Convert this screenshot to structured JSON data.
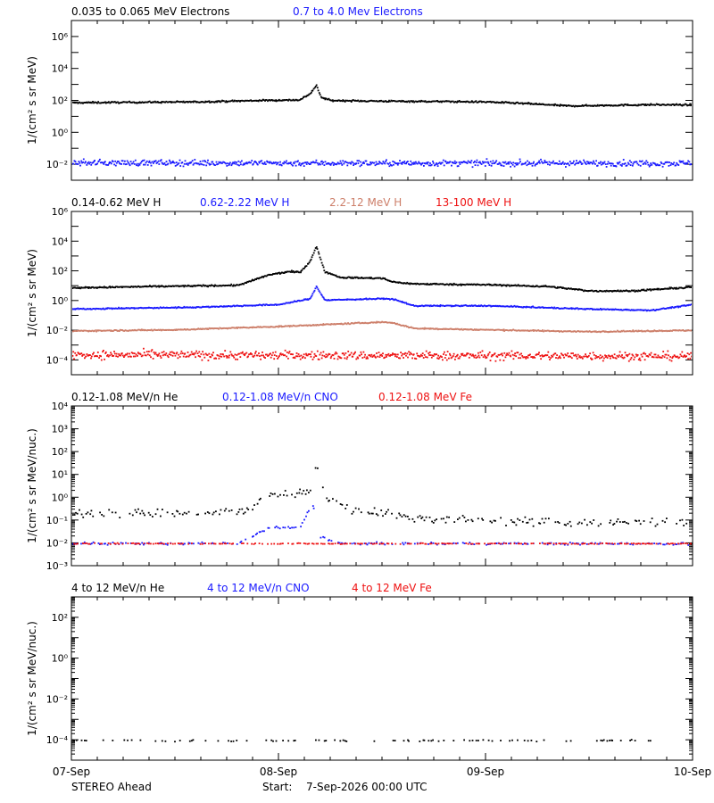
{
  "footer": {
    "spacecraft": "STEREO Ahead",
    "start_label": "Start:",
    "start_value": "7-Sep-2026 00:00 UTC"
  },
  "x_axis": {
    "ticks": [
      "07-Sep",
      "08-Sep",
      "09-Sep",
      "10-Sep"
    ],
    "range_days": [
      0,
      3
    ]
  },
  "colors": {
    "black": "#000000",
    "blue": "#1a1aff",
    "tan": "#cd7f6a",
    "red": "#ee1111"
  },
  "chart_data": [
    {
      "type": "scatter",
      "ylabel": "1/(cm² s sr MeV)",
      "yscale": "log",
      "ylim_exp": [
        -3,
        7
      ],
      "y_ticks": [
        {
          "e": -2,
          "label": "10⁻²"
        },
        {
          "e": 0,
          "label": "10⁰"
        },
        {
          "e": 2,
          "label": "10²"
        },
        {
          "e": 4,
          "label": "10⁴"
        },
        {
          "e": 6,
          "label": "10⁶"
        }
      ],
      "series": [
        {
          "name": "0.035 to 0.065 MeV Electrons",
          "color": "#000000",
          "x": [
            0,
            0.3,
            0.6,
            0.9,
            1.1,
            1.15,
            1.18,
            1.2,
            1.25,
            1.5,
            1.8,
            2.0,
            2.2,
            2.4,
            2.6,
            2.8,
            3.0
          ],
          "y": [
            80,
            85,
            90,
            110,
            120,
            300,
            1000,
            180,
            110,
            100,
            95,
            90,
            70,
            50,
            55,
            60,
            58
          ],
          "scatter": 0.05
        },
        {
          "name": "0.7 to 4.0 Mev Electrons",
          "color": "#1a1aff",
          "x": [
            0,
            1.5,
            3.0
          ],
          "y": [
            0.014,
            0.013,
            0.013
          ],
          "scatter": 0.18
        }
      ]
    },
    {
      "type": "scatter",
      "ylabel": "1/(cm² s sr MeV)",
      "yscale": "log",
      "ylim_exp": [
        -5,
        6
      ],
      "y_ticks": [
        {
          "e": -4,
          "label": "10⁻⁴"
        },
        {
          "e": -2,
          "label": "10⁻²"
        },
        {
          "e": 0,
          "label": "10⁰"
        },
        {
          "e": 2,
          "label": "10²"
        },
        {
          "e": 4,
          "label": "10⁴"
        },
        {
          "e": 6,
          "label": "10⁶"
        }
      ],
      "series": [
        {
          "name": "0.14-0.62 MeV H",
          "color": "#000000",
          "x": [
            0,
            0.4,
            0.8,
            0.85,
            0.95,
            1.05,
            1.1,
            1.15,
            1.18,
            1.22,
            1.3,
            1.5,
            1.55,
            1.65,
            2.0,
            2.3,
            2.5,
            2.7,
            3.0
          ],
          "y": [
            8,
            10,
            12,
            20,
            60,
            100,
            90,
            500,
            5000,
            100,
            40,
            35,
            20,
            15,
            13,
            10,
            5,
            5,
            9
          ],
          "scatter": 0.05
        },
        {
          "name": "0.62-2.22 MeV H",
          "color": "#1a1aff",
          "x": [
            0,
            0.6,
            1.0,
            1.15,
            1.18,
            1.22,
            1.5,
            1.55,
            1.65,
            2.0,
            2.5,
            2.8,
            3.0
          ],
          "y": [
            0.3,
            0.4,
            0.6,
            1.5,
            10,
            1.2,
            1.5,
            1.4,
            0.5,
            0.5,
            0.3,
            0.25,
            0.6
          ],
          "scatter": 0.04
        },
        {
          "name": "2.2-12 MeV H",
          "color": "#cd7f6a",
          "x": [
            0,
            0.5,
            1.0,
            1.5,
            1.55,
            1.65,
            2.0,
            2.5,
            3.0
          ],
          "y": [
            0.01,
            0.012,
            0.02,
            0.04,
            0.035,
            0.015,
            0.012,
            0.009,
            0.011
          ],
          "scatter": 0.04
        },
        {
          "name": "13-100 MeV H",
          "color": "#ee1111",
          "x": [
            0,
            1.5,
            3.0
          ],
          "y": [
            0.00025,
            0.00022,
            0.0002
          ],
          "scatter": 0.28
        }
      ]
    },
    {
      "type": "scatter",
      "ylabel": "1/(cm² s sr MeV/nuc.)",
      "yscale": "log",
      "ylim_exp": [
        -3,
        4
      ],
      "y_ticks": [
        {
          "e": -3,
          "label": "10⁻³"
        },
        {
          "e": -2,
          "label": "10⁻²"
        },
        {
          "e": -1,
          "label": "10⁻¹"
        },
        {
          "e": 0,
          "label": "10⁰"
        },
        {
          "e": 1,
          "label": "10¹"
        },
        {
          "e": 2,
          "label": "10²"
        },
        {
          "e": 3,
          "label": "10³"
        },
        {
          "e": 4,
          "label": "10⁴"
        }
      ],
      "series": [
        {
          "name": "0.12-1.08 MeV/n He",
          "color": "#000000",
          "x": [
            0,
            0.3,
            0.6,
            0.85,
            0.95,
            1.05,
            1.15,
            1.18,
            1.22,
            1.35,
            1.5,
            1.6,
            2.0,
            2.5,
            3.0
          ],
          "y": [
            0.2,
            0.25,
            0.2,
            0.3,
            1.5,
            1.5,
            2,
            40,
            1,
            0.3,
            0.25,
            0.15,
            0.1,
            0.08,
            0.1
          ],
          "scatter": 0.2,
          "sparse": true
        },
        {
          "name": "0.12-1.08 MeV/n CNO",
          "color": "#1a1aff",
          "x": [
            0,
            0.8,
            0.95,
            1.1,
            1.16,
            1.2,
            1.3,
            3.0
          ],
          "y": [
            0.01,
            0.01,
            0.05,
            0.05,
            0.6,
            0.02,
            0.01,
            0.01
          ],
          "scatter": 0.05,
          "sparse": true
        },
        {
          "name": "0.12-1.08 MeV Fe",
          "color": "#ee1111",
          "x": [
            0,
            3.0
          ],
          "y": [
            0.01,
            0.01
          ],
          "scatter": 0.02,
          "sparse": true
        }
      ]
    },
    {
      "type": "scatter",
      "ylabel": "1/(cm² s sr MeV/nuc.)",
      "yscale": "log",
      "ylim_exp": [
        -5,
        3
      ],
      "y_ticks": [
        {
          "e": -4,
          "label": "10⁻⁴"
        },
        {
          "e": -2,
          "label": "10⁻²"
        },
        {
          "e": 0,
          "label": "10⁰"
        },
        {
          "e": 2,
          "label": "10²"
        }
      ],
      "series": [
        {
          "name": "4 to 12 MeV/n He",
          "color": "#000000",
          "x": [
            0,
            3.0
          ],
          "y": [
            0.0001,
            0.0001
          ],
          "scatter": 0.04,
          "sparse": true
        },
        {
          "name": "4 to 12 MeV/n CNO",
          "color": "#1a1aff",
          "x": [],
          "y": []
        },
        {
          "name": "4 to 12 MeV Fe",
          "color": "#ee1111",
          "x": [],
          "y": []
        }
      ]
    }
  ]
}
